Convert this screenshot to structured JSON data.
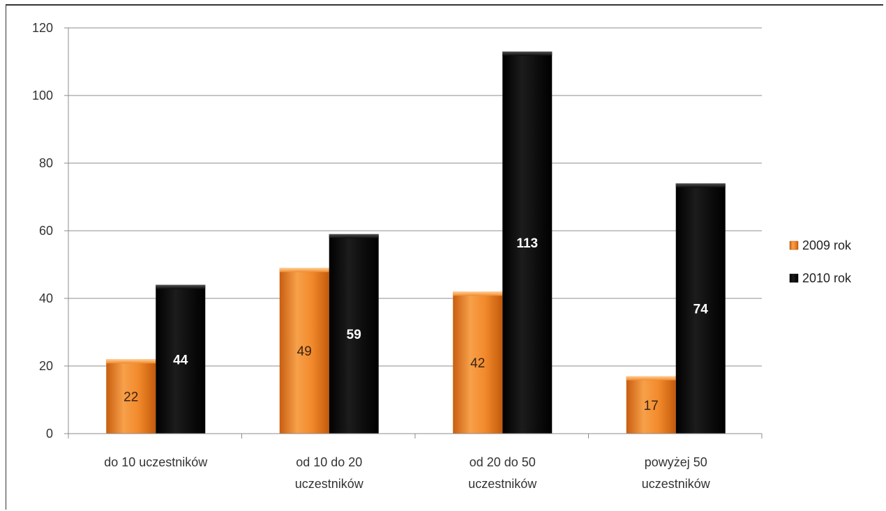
{
  "chart_data": {
    "type": "bar",
    "title": "",
    "xlabel": "",
    "ylabel": "",
    "categories": [
      [
        "do 10 uczestników"
      ],
      [
        "od 10 do 20",
        "uczestników"
      ],
      [
        "od 20 do 50",
        "uczestników"
      ],
      [
        "powyżej 50",
        "uczestników"
      ]
    ],
    "series": [
      {
        "name": "2009 rok",
        "values": [
          22,
          49,
          42,
          17
        ],
        "color": "#f08a2a",
        "label_color": "#3a2410"
      },
      {
        "name": "2010 rok",
        "values": [
          44,
          59,
          113,
          74
        ],
        "color": "#0a0a0a",
        "label_color": "#ffffff"
      }
    ],
    "ylim": [
      0,
      120
    ],
    "yticks": [
      0,
      20,
      40,
      60,
      80,
      100,
      120
    ],
    "grid": true,
    "legend_position": "right",
    "data_labels": true
  }
}
